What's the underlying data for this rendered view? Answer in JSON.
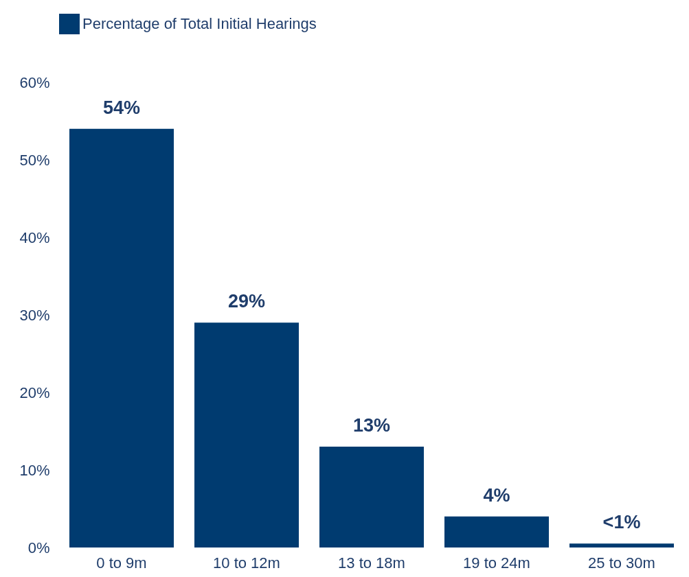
{
  "chart_data": {
    "type": "bar",
    "categories": [
      "0 to 9m",
      "10 to 12m",
      "13 to 18m",
      "19 to 24m",
      "25 to 30m"
    ],
    "series": [
      {
        "name": "Percentage of Total Initial Hearings",
        "color": "#003b70",
        "values": [
          54,
          29,
          13,
          4,
          0.5
        ]
      }
    ],
    "value_labels": [
      "54%",
      "29%",
      "13%",
      "4%",
      "<1%"
    ],
    "ylim": [
      0,
      60
    ],
    "yticks": [
      {
        "value": 0,
        "label": "0%"
      },
      {
        "value": 10,
        "label": "10%"
      },
      {
        "value": 20,
        "label": "20%"
      },
      {
        "value": 30,
        "label": "30%"
      },
      {
        "value": 40,
        "label": "40%"
      },
      {
        "value": 50,
        "label": "50%"
      },
      {
        "value": 60,
        "label": "60%"
      }
    ],
    "grid": false,
    "legend": "top"
  }
}
